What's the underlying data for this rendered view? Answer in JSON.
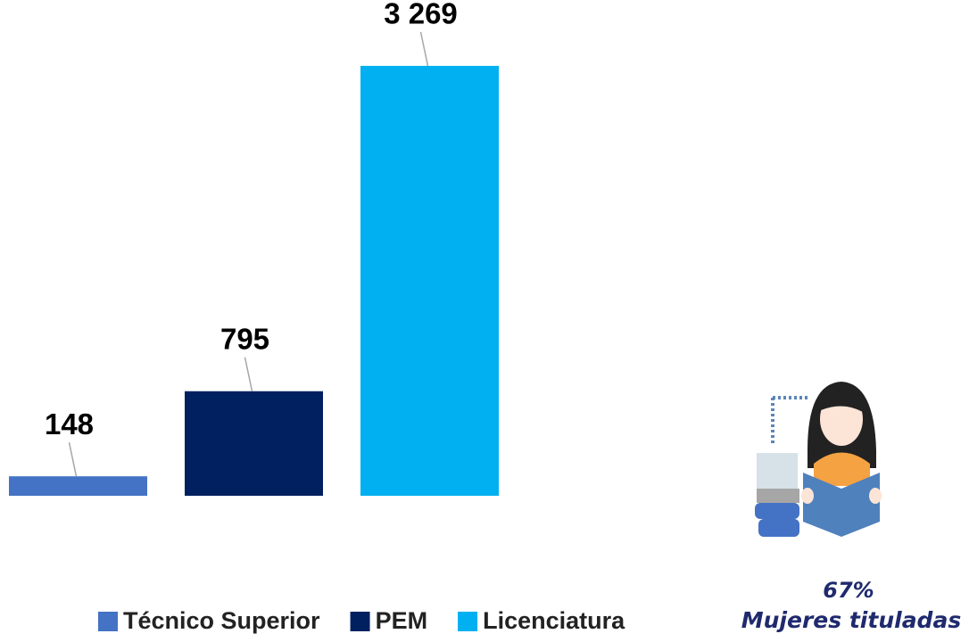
{
  "chart_data": {
    "type": "bar",
    "categories": [
      null
    ],
    "series": [
      {
        "name": "Técnico Superior",
        "color": "#4472c4",
        "values": [
          148
        ]
      },
      {
        "name": "PEM",
        "color": "#002060",
        "values": [
          795
        ]
      },
      {
        "name": "Licenciatura",
        "color": "#00b0f0",
        "values": [
          3269
        ],
        "value_labels": [
          "3 269"
        ]
      }
    ],
    "ylim": [
      0,
      3770
    ],
    "annotations": [
      "67%",
      "Mujeres tituladas"
    ]
  }
}
